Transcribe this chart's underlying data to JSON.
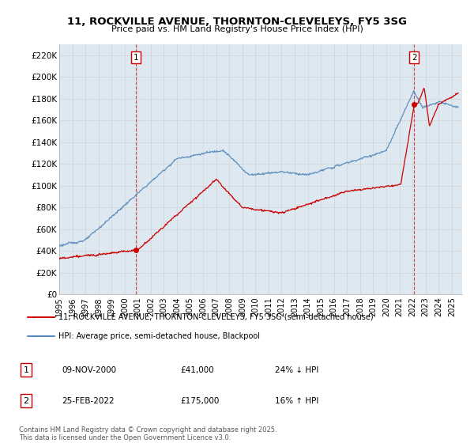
{
  "title": "11, ROCKVILLE AVENUE, THORNTON-CLEVELEYS, FY5 3SG",
  "subtitle": "Price paid vs. HM Land Registry's House Price Index (HPI)",
  "ylabel_ticks": [
    "£0",
    "£20K",
    "£40K",
    "£60K",
    "£80K",
    "£100K",
    "£120K",
    "£140K",
    "£160K",
    "£180K",
    "£200K",
    "£220K"
  ],
  "ytick_values": [
    0,
    20000,
    40000,
    60000,
    80000,
    100000,
    120000,
    140000,
    160000,
    180000,
    200000,
    220000
  ],
  "ylim": [
    0,
    230000
  ],
  "legend_label_red": "11, ROCKVILLE AVENUE, THORNTON-CLEVELEYS, FY5 3SG (semi-detached house)",
  "legend_label_blue": "HPI: Average price, semi-detached house, Blackpool",
  "sale1_date": "09-NOV-2000",
  "sale1_price": "£41,000",
  "sale1_hpi": "24% ↓ HPI",
  "sale2_date": "25-FEB-2022",
  "sale2_price": "£175,000",
  "sale2_hpi": "16% ↑ HPI",
  "footer": "Contains HM Land Registry data © Crown copyright and database right 2025.\nThis data is licensed under the Open Government Licence v3.0.",
  "red_color": "#cc0000",
  "blue_color": "#5588bb",
  "bg_fill_color": "#dde8f0",
  "vline_color": "#cc0000",
  "grid_color": "#cccccc",
  "bg_color": "#ffffff"
}
